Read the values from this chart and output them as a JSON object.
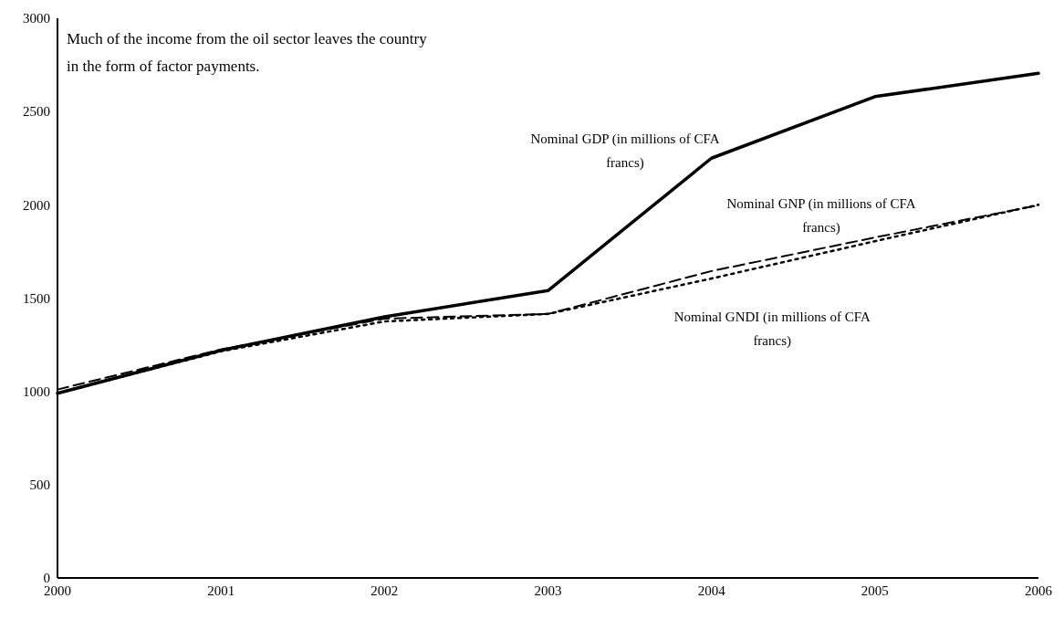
{
  "chart_data": {
    "type": "line",
    "annotations": [
      "Much of the income from the oil sector leaves the country\nin the form of factor payments."
    ],
    "categories": [
      "2000",
      "2001",
      "2002",
      "2003",
      "2004",
      "2005",
      "2006"
    ],
    "series": [
      {
        "name": "Nominal GDP (in millions of CFA francs)",
        "color": "#000000",
        "line_style": "solid",
        "values": [
          990,
          1220,
          1400,
          1540,
          2250,
          2580,
          2705
        ]
      },
      {
        "name": "Nominal GNP (in millions of CFA francs)",
        "color": "#000000",
        "line_style": "dashed",
        "values": [
          1010,
          1225,
          1390,
          1415,
          1645,
          1825,
          1998
        ]
      },
      {
        "name": "Nominal GNDI (in millions of CFA francs)",
        "color": "#000000",
        "line_style": "dotted",
        "values": [
          990,
          1215,
          1375,
          1415,
          1605,
          1805,
          2000
        ]
      }
    ],
    "ylim": [
      0,
      3000
    ],
    "yticks": [
      0,
      500,
      1000,
      1500,
      2000,
      2500,
      3000
    ],
    "grid": false,
    "legend": false,
    "marker": "none"
  }
}
